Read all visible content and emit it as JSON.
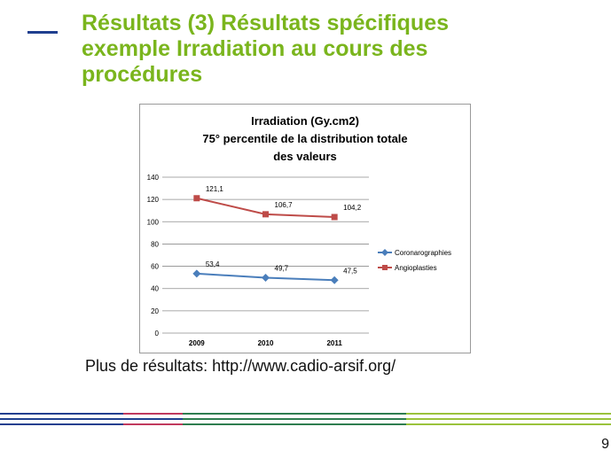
{
  "slide": {
    "title_lines": [
      "Résultats (3) Résultats spécifiques",
      "exemple Irradiation au cours des",
      "procédures"
    ],
    "footer": "Plus de résultats: http://www.cadio-arsif.org/",
    "page_number": "9"
  },
  "colors": {
    "title": "#7ab51d",
    "dash": "#1f3f8f",
    "series_coronarographies": "#4a7ebb",
    "series_angioplasties": "#be4b48"
  },
  "chart_data": {
    "type": "line",
    "title_lines": [
      "Irradiation (Gy.cm2)",
      "75° percentile de la distribution totale",
      "des valeurs"
    ],
    "categories": [
      "2009",
      "2010",
      "2011"
    ],
    "ylim": [
      0,
      140
    ],
    "yticks": [
      "0",
      "20",
      "40",
      "60",
      "80",
      "100",
      "120",
      "140"
    ],
    "grid": true,
    "legend_position": "right",
    "series": [
      {
        "name": "Coronarographies",
        "values": [
          53.4,
          49.7,
          47.5
        ],
        "labels": [
          "53,4",
          "49,7",
          "47,5"
        ],
        "color": "#4a7ebb",
        "marker": "diamond"
      },
      {
        "name": "Angioplasties",
        "values": [
          121.1,
          106.7,
          104.2
        ],
        "labels": [
          "121,1",
          "106,7",
          "104,2"
        ],
        "color": "#be4b48",
        "marker": "square"
      }
    ]
  }
}
